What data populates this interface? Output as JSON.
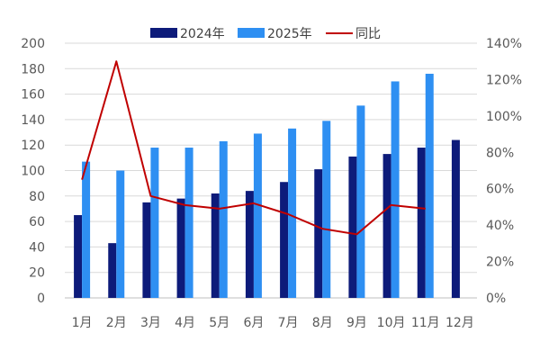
{
  "chart_data": {
    "type": "bar",
    "categories": [
      "1月",
      "2月",
      "3月",
      "4月",
      "5月",
      "6月",
      "7月",
      "8月",
      "9月",
      "10月",
      "11月",
      "12月"
    ],
    "series": [
      {
        "name": "2024年",
        "type": "bar",
        "axis": "left",
        "color": "#0d1b7a",
        "values": [
          65,
          43,
          75,
          78,
          82,
          84,
          91,
          101,
          111,
          113,
          118,
          124
        ]
      },
      {
        "name": "2025年",
        "type": "bar",
        "axis": "left",
        "color": "#2e8ff2",
        "values": [
          107,
          100,
          118,
          118,
          123,
          129,
          133,
          139,
          151,
          170,
          176,
          null
        ]
      },
      {
        "name": "同比",
        "type": "line",
        "axis": "right",
        "color": "#c00000",
        "values": [
          65,
          130,
          56,
          51,
          49,
          52,
          46,
          38,
          35,
          51,
          49,
          null
        ]
      }
    ],
    "left_axis": {
      "min": 0,
      "max": 200,
      "step": 20,
      "ticks": [
        "0",
        "20",
        "40",
        "60",
        "80",
        "100",
        "120",
        "140",
        "160",
        "180",
        "200"
      ]
    },
    "right_axis": {
      "min": 0,
      "max": 140,
      "step": 20,
      "unit": "%",
      "ticks": [
        "0%",
        "20%",
        "40%",
        "60%",
        "80%",
        "100%",
        "120%",
        "140%"
      ]
    },
    "grid": true,
    "legend_position": "top-center"
  }
}
